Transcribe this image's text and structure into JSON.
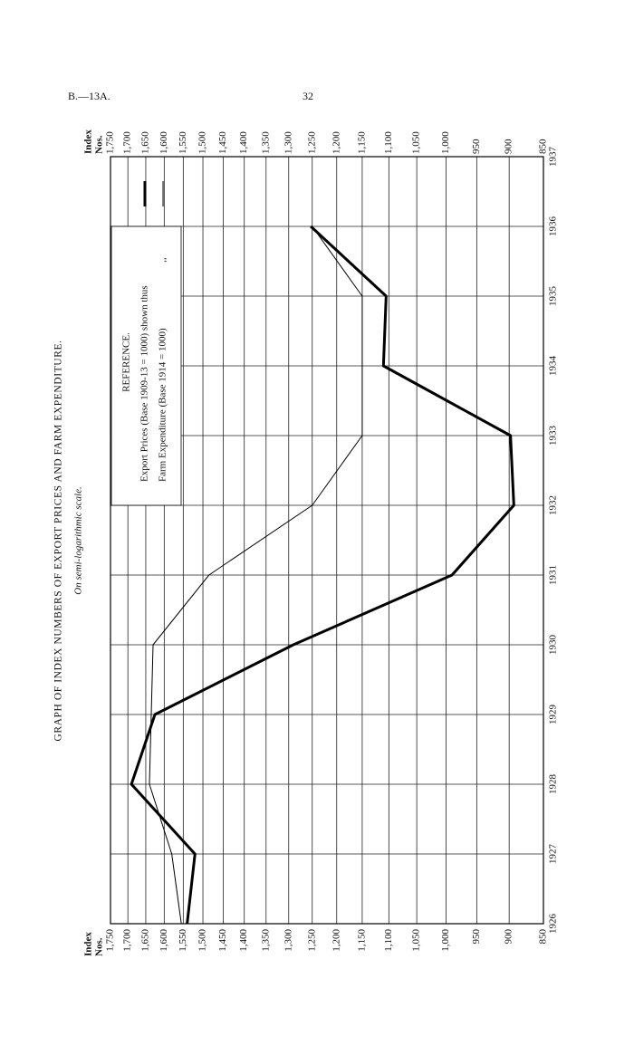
{
  "header": {
    "left": "B.—13A.",
    "page": "32"
  },
  "chart_data": {
    "type": "line",
    "title": "GRAPH OF INDEX NUMBERS OF EXPORT PRICES AND FARM EXPENDITURE.",
    "subtitle": "On semi-logarithmic scale.",
    "y_label": [
      "Index",
      "Nos."
    ],
    "legend_title": "REFERENCE.",
    "legend_ditto": ",,",
    "x": [
      1926,
      1927,
      1928,
      1929,
      1930,
      1931,
      1932,
      1933,
      1934,
      1935,
      1936
    ],
    "xlim": [
      1926,
      1937
    ],
    "xticks": [
      1926,
      1927,
      1928,
      1929,
      1930,
      1931,
      1932,
      1933,
      1934,
      1935,
      1936,
      1937
    ],
    "ylim": [
      850,
      1750
    ],
    "y_scale": "log",
    "grid": true,
    "yticks": [
      850,
      900,
      950,
      {
        "value": 1000,
        "label": "1,000"
      },
      {
        "value": 1050,
        "label": "1,050"
      },
      {
        "value": 1100,
        "label": "1,100"
      },
      {
        "value": 1150,
        "label": "1,150"
      },
      {
        "value": 1200,
        "label": "1,200"
      },
      {
        "value": 1250,
        "label": "1,250"
      },
      {
        "value": 1300,
        "label": "1,300"
      },
      {
        "value": 1350,
        "label": "1,350"
      },
      {
        "value": 1400,
        "label": "1,400"
      },
      {
        "value": 1450,
        "label": "1,450"
      },
      {
        "value": 1500,
        "label": "1,500"
      },
      {
        "value": 1550,
        "label": "1,550"
      },
      {
        "value": 1600,
        "label": "1,600"
      },
      {
        "value": 1650,
        "label": "1,650"
      },
      {
        "value": 1700,
        "label": "1,700"
      },
      {
        "value": 1750,
        "label": "1,750"
      }
    ],
    "series": [
      {
        "name": "Export Prices (Base 1909-13 = 1000) shown thus",
        "color": "#000000",
        "width": 3,
        "values": [
          1540,
          1520,
          1690,
          1625,
          1290,
          990,
          893,
          898,
          1110,
          1105,
          1253
        ]
      },
      {
        "name": "Farm Expenditure (Base 1914 = 1000)",
        "color": "#000000",
        "width": 1,
        "values": [
          1555,
          1580,
          1640,
          1635,
          1630,
          1485,
          1250,
          1150,
          1150,
          1150,
          1250
        ]
      }
    ]
  }
}
